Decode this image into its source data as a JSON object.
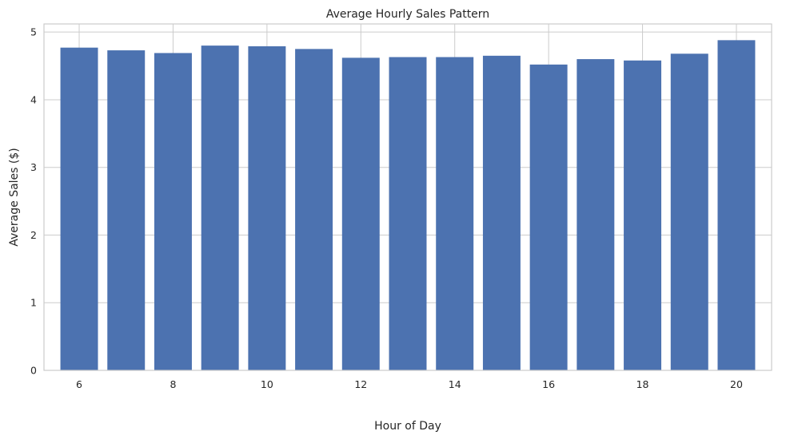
{
  "chart_data": {
    "type": "bar",
    "title": "Average Hourly Sales Pattern",
    "xlabel": "Hour of Day",
    "ylabel": "Average Sales ($)",
    "x": [
      6,
      7,
      8,
      9,
      10,
      11,
      12,
      13,
      14,
      15,
      16,
      17,
      18,
      19,
      20
    ],
    "values": [
      4.77,
      4.73,
      4.69,
      4.8,
      4.79,
      4.75,
      4.62,
      4.63,
      4.63,
      4.65,
      4.52,
      4.6,
      4.58,
      4.68,
      4.88
    ],
    "xticks": [
      "6",
      "8",
      "10",
      "12",
      "14",
      "16",
      "18",
      "20"
    ],
    "yticks": [
      "0",
      "1",
      "2",
      "3",
      "4",
      "5"
    ],
    "xlim": [
      5.25,
      20.75
    ],
    "ylim": [
      0,
      5.12
    ],
    "grid": true,
    "colors": {
      "bar": "#4c72b0",
      "grid": "#cccccc",
      "background": "#ffffff",
      "text": "#262626"
    }
  }
}
